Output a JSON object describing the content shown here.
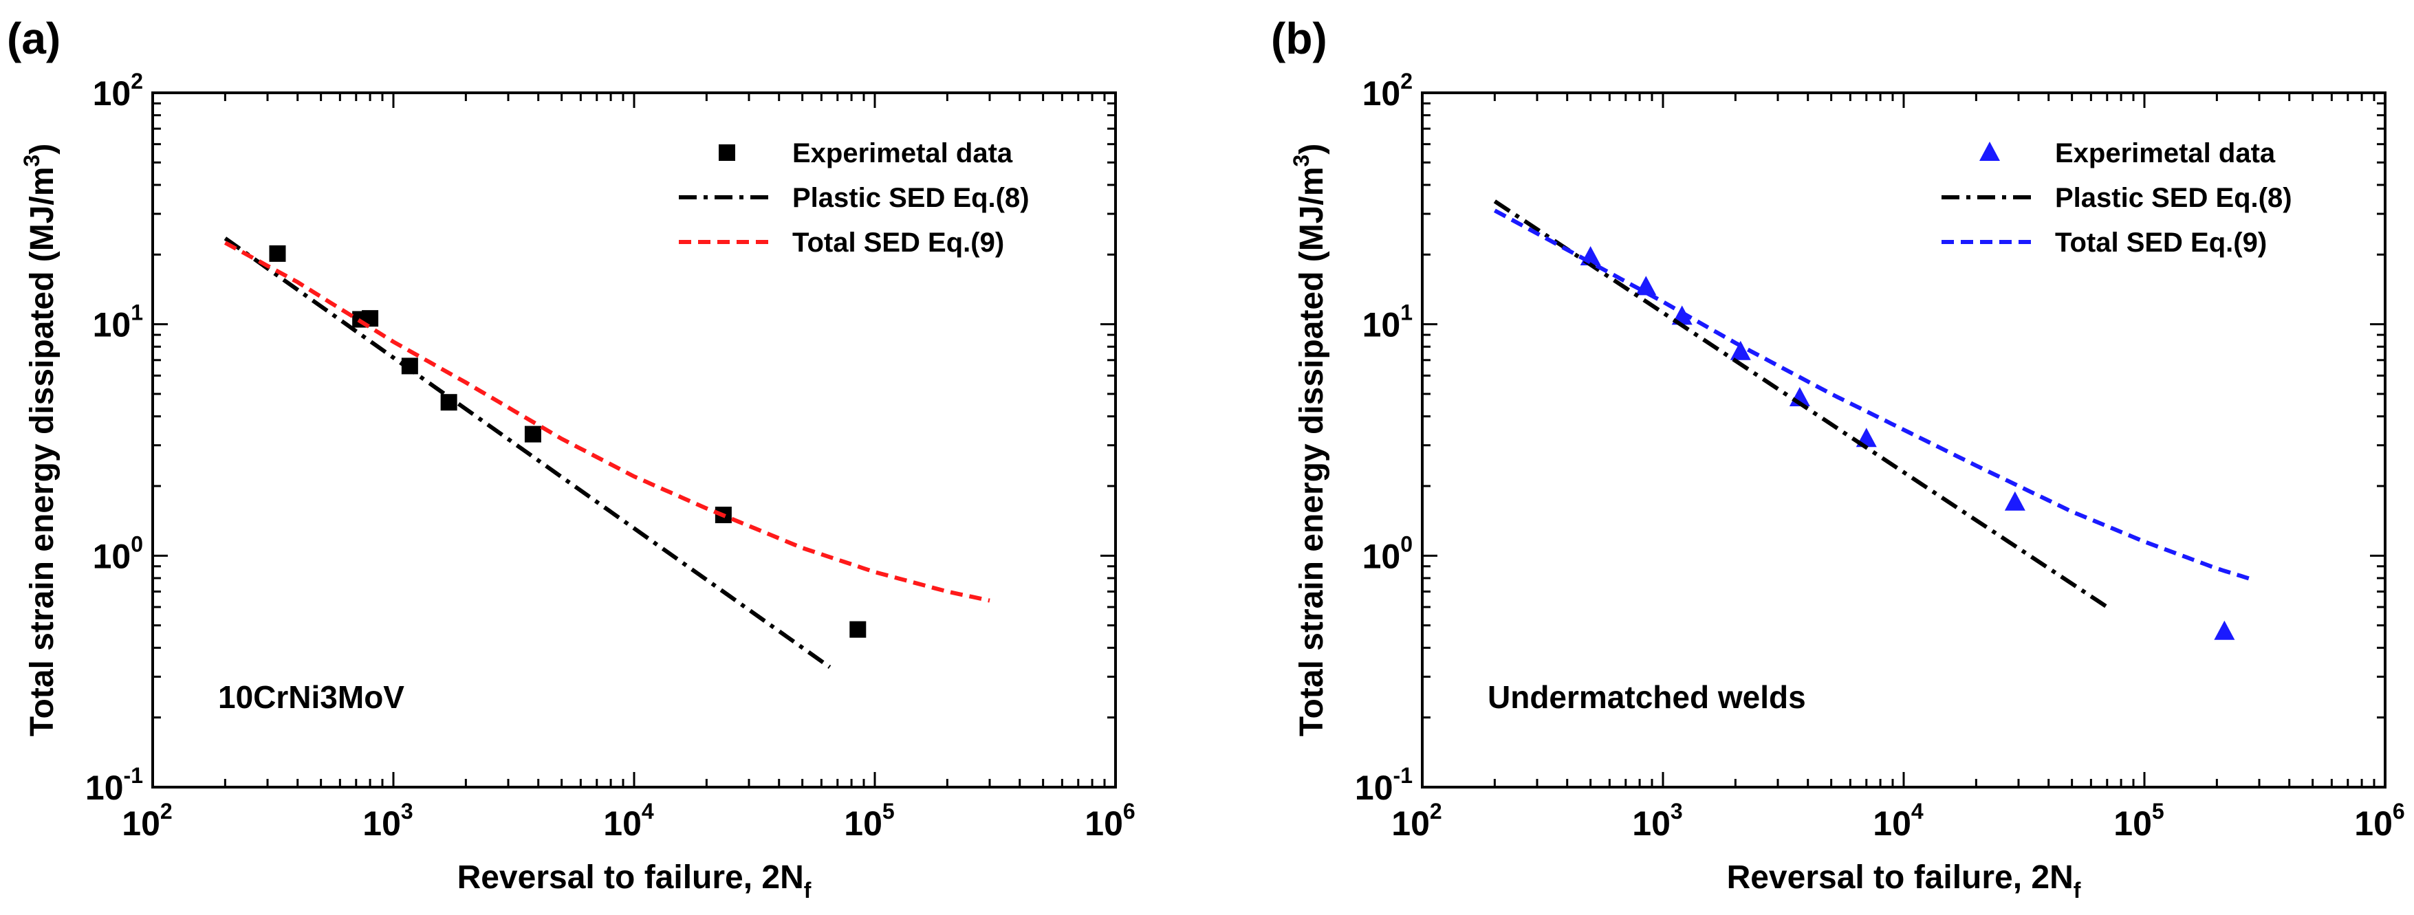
{
  "chart_data": [
    {
      "type": "scatter",
      "panel_label": "(a)",
      "xlabel": "Reversal to failure, 2N",
      "xlabel_sub": "f",
      "ylabel": "Total strain energy dissipated (MJ/m",
      "ylabel_sup": "3",
      "ylabel_end": ")",
      "xscale": "log",
      "yscale": "log",
      "xlim": [
        100,
        1000000
      ],
      "ylim": [
        0.1,
        100
      ],
      "x_ticks": [
        {
          "base": "10",
          "exp": "2"
        },
        {
          "base": "10",
          "exp": "3"
        },
        {
          "base": "10",
          "exp": "4"
        },
        {
          "base": "10",
          "exp": "5"
        },
        {
          "base": "10",
          "exp": "6"
        }
      ],
      "y_ticks": [
        {
          "base": "10",
          "exp": "-1"
        },
        {
          "base": "10",
          "exp": "0"
        },
        {
          "base": "10",
          "exp": "1"
        },
        {
          "base": "10",
          "exp": "2"
        }
      ],
      "annotation": "10CrNi3MoV",
      "legend_position": "top-right",
      "marker_color": "#000000",
      "series": [
        {
          "name": "Experimetal data",
          "kind": "markers",
          "marker": "square",
          "color": "#000000",
          "x": [
            330,
            730,
            800,
            1170,
            1700,
            3800,
            23500,
            85000
          ],
          "y": [
            20.2,
            10.5,
            10.6,
            6.6,
            4.6,
            3.35,
            1.5,
            0.48
          ]
        },
        {
          "name": "Plastic SED Eq.(8)",
          "kind": "line",
          "dash": "dashdot",
          "color": "#000000",
          "x": [
            200,
            65000
          ],
          "y": [
            23.5,
            0.33
          ]
        },
        {
          "name": "Total SED Eq.(9)",
          "kind": "line",
          "dash": "dashed",
          "color": "#ff1a1a",
          "x": [
            200,
            400,
            1000,
            2000,
            5000,
            10000,
            20000,
            50000,
            100000,
            200000,
            300000
          ],
          "y": [
            22.5,
            15.2,
            8.4,
            5.6,
            3.2,
            2.2,
            1.6,
            1.08,
            0.85,
            0.7,
            0.64
          ]
        }
      ]
    },
    {
      "type": "scatter",
      "panel_label": "(b)",
      "xlabel": "Reversal to failure, 2N",
      "xlabel_sub": "f",
      "ylabel": "Total strain energy dissipated (MJ/m",
      "ylabel_sup": "3",
      "ylabel_end": ")",
      "xscale": "log",
      "yscale": "log",
      "xlim": [
        100,
        1000000
      ],
      "ylim": [
        0.1,
        100
      ],
      "x_ticks": [
        {
          "base": "10",
          "exp": "2"
        },
        {
          "base": "10",
          "exp": "3"
        },
        {
          "base": "10",
          "exp": "4"
        },
        {
          "base": "10",
          "exp": "5"
        },
        {
          "base": "10",
          "exp": "6"
        }
      ],
      "y_ticks": [
        {
          "base": "10",
          "exp": "-1"
        },
        {
          "base": "10",
          "exp": "0"
        },
        {
          "base": "10",
          "exp": "1"
        },
        {
          "base": "10",
          "exp": "2"
        }
      ],
      "annotation": "Undermatched welds",
      "legend_position": "top-right",
      "marker_color": "#1a1aff",
      "series": [
        {
          "name": "Experimetal data",
          "kind": "markers",
          "marker": "triangle",
          "color": "#1a1aff",
          "x": [
            500,
            850,
            1200,
            2100,
            3700,
            7000,
            29000,
            215000
          ],
          "y": [
            19.5,
            14.5,
            10.8,
            7.6,
            4.8,
            3.2,
            1.7,
            0.47
          ]
        },
        {
          "name": "Plastic SED Eq.(8)",
          "kind": "line",
          "dash": "dashdot",
          "color": "#000000",
          "x": [
            200,
            70000
          ],
          "y": [
            34,
            0.6
          ]
        },
        {
          "name": "Total SED Eq.(9)",
          "kind": "line",
          "dash": "dashed",
          "color": "#1a1aff",
          "x": [
            200,
            500,
            1000,
            2000,
            5000,
            10000,
            20000,
            50000,
            100000,
            200000,
            280000
          ],
          "y": [
            31,
            18.5,
            12.5,
            8.3,
            5.0,
            3.5,
            2.45,
            1.55,
            1.15,
            0.88,
            0.79
          ]
        }
      ]
    }
  ]
}
